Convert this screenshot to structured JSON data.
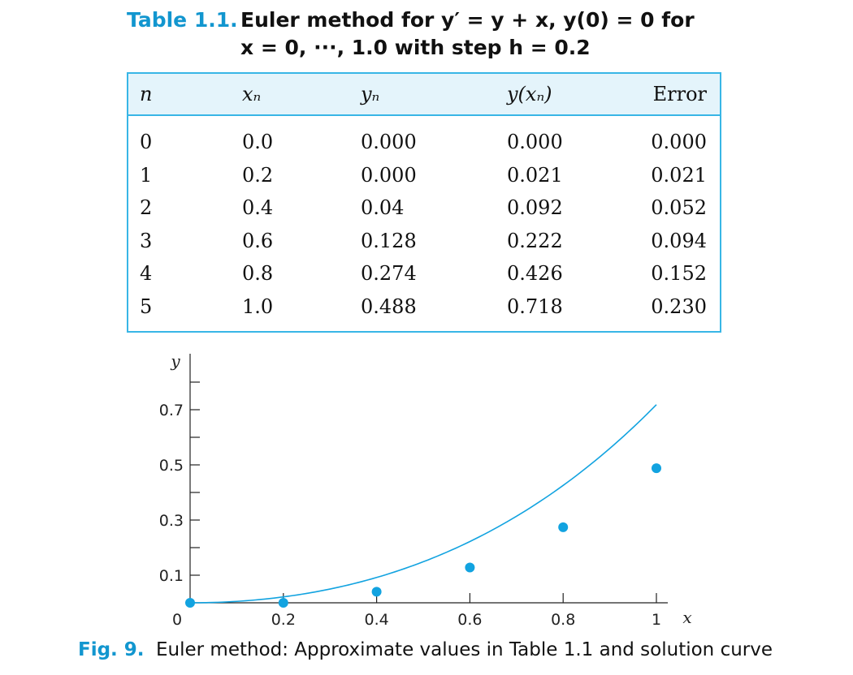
{
  "table": {
    "label": "Table 1.1.",
    "title_line1": "Euler method for y′ = y + x, y(0) = 0 for",
    "title_line2": "x = 0, ···, 1.0 with step h = 0.2",
    "headers": {
      "n": "n",
      "xn": "xₙ",
      "yn": "yₙ",
      "yx": "y(xₙ)",
      "error": "Error"
    },
    "rows": [
      {
        "n": "0",
        "xn": "0.0",
        "yn": "0.000",
        "yx": "0.000",
        "error": "0.000"
      },
      {
        "n": "1",
        "xn": "0.2",
        "yn": "0.000",
        "yx": "0.021",
        "error": "0.021"
      },
      {
        "n": "2",
        "xn": "0.4",
        "yn": "0.04",
        "yx": "0.092",
        "error": "0.052"
      },
      {
        "n": "3",
        "xn": "0.6",
        "yn": "0.128",
        "yx": "0.222",
        "error": "0.094"
      },
      {
        "n": "4",
        "xn": "0.8",
        "yn": "0.274",
        "yx": "0.426",
        "error": "0.152"
      },
      {
        "n": "5",
        "xn": "1.0",
        "yn": "0.488",
        "yx": "0.718",
        "error": "0.230"
      }
    ]
  },
  "chart_data": {
    "type": "scatter",
    "xlabel": "x",
    "ylabel": "y",
    "xlim": [
      0,
      1.05
    ],
    "ylim": [
      0,
      0.8
    ],
    "x_ticks": [
      "0",
      "0.2",
      "0.4",
      "0.6",
      "0.8",
      "1"
    ],
    "x_tick_values": [
      0,
      0.2,
      0.4,
      0.6,
      0.8,
      1.0
    ],
    "y_ticks": [
      "0.1",
      "0.3",
      "0.5",
      "0.7"
    ],
    "y_tick_values": [
      0.1,
      0.3,
      0.5,
      0.7
    ],
    "y_minor_tick_values": [
      0.2,
      0.4,
      0.6,
      0.8
    ],
    "points": {
      "x": [
        0,
        0.2,
        0.4,
        0.6,
        0.8,
        1.0
      ],
      "y": [
        0.0,
        0.0,
        0.04,
        0.128,
        0.274,
        0.488
      ]
    },
    "curve": {
      "equation": "y = e^x - x - 1",
      "x_range": [
        0,
        1.0
      ]
    },
    "color": "#12a3e0"
  },
  "figure": {
    "label": "Fig. 9.",
    "caption": "Euler method: Approximate values in Table 1.1 and solution curve"
  }
}
